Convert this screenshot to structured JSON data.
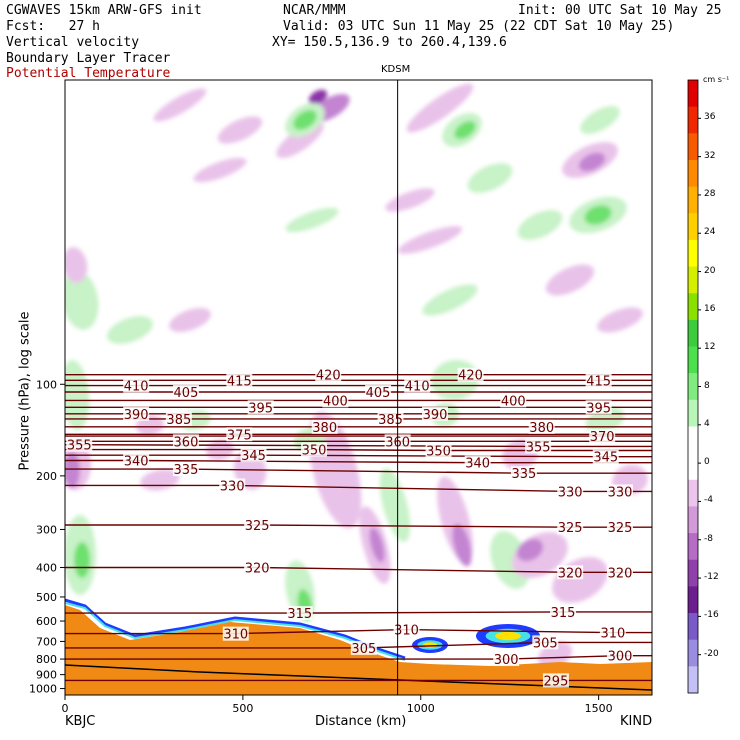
{
  "header": {
    "title_left": "CGWAVES 15km ARW-GFS init",
    "org": "NCAR/MMM",
    "init": "Init: 00 UTC Sat 10 May 25",
    "fcst": "Fcst:   27 h",
    "valid": "Valid: 03 UTC Sun 11 May 25 (22 CDT Sat 10 May 25)",
    "field1": "Vertical velocity",
    "xy": "XY= 150.5,136.9 to 260.4,139.6",
    "field2": "Boundary Layer Tracer",
    "field3": "Potential Temperature",
    "station_marker": "KDSM"
  },
  "colors": {
    "theta_line": "#6b0000",
    "terrain": "#f08a14",
    "pos_light": "#c8f2c8",
    "pos_mid": "#6ee06e",
    "pos_strong": "#22c422",
    "neg_light": "#e9c2e9",
    "neg_mid": "#c384d2",
    "neg_strong": "#8a34a8"
  },
  "chart_data": {
    "type": "heatmap",
    "xlabel": "Distance (km)",
    "ylabel": "Pressure (hPa), log scale",
    "xlim": [
      0,
      1650
    ],
    "ylim": [
      1050,
      10
    ],
    "x_ticks": [
      "0",
      "500",
      "1000",
      "1500"
    ],
    "x_tick_values": [
      0,
      500,
      1000,
      1500
    ],
    "y_ticks": [
      "100",
      "200",
      "300",
      "400",
      "500",
      "600",
      "700",
      "800",
      "900",
      "1000"
    ],
    "y_tick_values": [
      100,
      200,
      300,
      400,
      500,
      600,
      700,
      800,
      900,
      1000
    ],
    "left_station": "KBJC",
    "right_station": "KIND",
    "station_line_x_km": 935,
    "colorbar_unit": "cm s⁻¹",
    "colorbar_labels": [
      "36",
      "32",
      "28",
      "24",
      "20",
      "16",
      "12",
      "8",
      "4",
      "0",
      "-4",
      "-8",
      "-12",
      "-16",
      "-20"
    ],
    "colorbar_label_values": [
      36,
      32,
      28,
      24,
      20,
      16,
      12,
      8,
      4,
      0,
      -4,
      -8,
      -12,
      -16,
      -20
    ],
    "colorbar_colors": [
      "#e00000",
      "#f02800",
      "#f85a00",
      "#ff8a00",
      "#ffb000",
      "#ffd000",
      "#ffff00",
      "#d4f000",
      "#8ce000",
      "#3ccc3c",
      "#4ce04c",
      "#80ec80",
      "#b8f6b8",
      "#ffffff",
      "#ffffff",
      "#ecc4ec",
      "#d29ad8",
      "#b46cc4",
      "#9040aa",
      "#6c1e90",
      "#7a5ac8",
      "#9a8ce0",
      "#c2c0f4"
    ],
    "theta_levels": [
      {
        "k": 295,
        "labels": [
          {
            "x": 1380,
            "p": 940
          }
        ]
      },
      {
        "k": 300,
        "labels": [
          {
            "x": 1240,
            "p": 800
          },
          {
            "x": 1560,
            "p": 780
          }
        ]
      },
      {
        "k": 305,
        "labels": [
          {
            "x": 840,
            "p": 735
          },
          {
            "x": 1350,
            "p": 705
          }
        ]
      },
      {
        "k": 310,
        "labels": [
          {
            "x": 480,
            "p": 660
          },
          {
            "x": 960,
            "p": 640
          },
          {
            "x": 1540,
            "p": 655
          }
        ]
      },
      {
        "k": 315,
        "labels": [
          {
            "x": 660,
            "p": 565
          },
          {
            "x": 1400,
            "p": 560
          }
        ]
      },
      {
        "k": 320,
        "labels": [
          {
            "x": 540,
            "p": 400
          },
          {
            "x": 1420,
            "p": 415
          },
          {
            "x": 1560,
            "p": 415
          }
        ]
      },
      {
        "k": 325,
        "labels": [
          {
            "x": 540,
            "p": 290
          },
          {
            "x": 1420,
            "p": 295
          },
          {
            "x": 1560,
            "p": 295
          }
        ]
      },
      {
        "k": 330,
        "labels": [
          {
            "x": 470,
            "p": 215
          },
          {
            "x": 1420,
            "p": 225
          },
          {
            "x": 1560,
            "p": 225
          }
        ]
      },
      {
        "k": 335,
        "labels": [
          {
            "x": 340,
            "p": 190
          },
          {
            "x": 1290,
            "p": 196
          }
        ]
      },
      {
        "k": 340,
        "labels": [
          {
            "x": 200,
            "p": 178
          },
          {
            "x": 1160,
            "p": 181
          }
        ]
      },
      {
        "k": 345,
        "labels": [
          {
            "x": 530,
            "p": 171
          },
          {
            "x": 1520,
            "p": 173
          }
        ]
      },
      {
        "k": 350,
        "labels": [
          {
            "x": 700,
            "p": 164
          },
          {
            "x": 1050,
            "p": 165
          }
        ]
      },
      {
        "k": 355,
        "labels": [
          {
            "x": 40,
            "p": 158
          },
          {
            "x": 1330,
            "p": 160
          }
        ]
      },
      {
        "k": 360,
        "labels": [
          {
            "x": 340,
            "p": 154
          },
          {
            "x": 935,
            "p": 154
          }
        ]
      },
      {
        "k": 370,
        "labels": [
          {
            "x": 1510,
            "p": 148
          }
        ]
      },
      {
        "k": 375,
        "labels": [
          {
            "x": 490,
            "p": 146
          }
        ]
      },
      {
        "k": 380,
        "labels": [
          {
            "x": 730,
            "p": 138
          },
          {
            "x": 1340,
            "p": 138
          }
        ]
      },
      {
        "k": 385,
        "labels": [
          {
            "x": 320,
            "p": 130
          },
          {
            "x": 915,
            "p": 130
          }
        ]
      },
      {
        "k": 390,
        "labels": [
          {
            "x": 200,
            "p": 125
          },
          {
            "x": 1040,
            "p": 125
          }
        ]
      },
      {
        "k": 395,
        "labels": [
          {
            "x": 550,
            "p": 119
          },
          {
            "x": 1500,
            "p": 119
          }
        ]
      },
      {
        "k": 400,
        "labels": [
          {
            "x": 760,
            "p": 113
          },
          {
            "x": 1260,
            "p": 113
          }
        ]
      },
      {
        "k": 405,
        "labels": [
          {
            "x": 340,
            "p": 106
          },
          {
            "x": 880,
            "p": 106
          }
        ]
      },
      {
        "k": 410,
        "labels": [
          {
            "x": 200,
            "p": 101
          },
          {
            "x": 990,
            "p": 101
          }
        ]
      },
      {
        "k": 415,
        "labels": [
          {
            "x": 490,
            "p": 97
          },
          {
            "x": 1500,
            "p": 97
          }
        ]
      },
      {
        "k": 420,
        "labels": [
          {
            "x": 740,
            "p": 93
          },
          {
            "x": 1140,
            "p": 93
          }
        ]
      }
    ]
  }
}
